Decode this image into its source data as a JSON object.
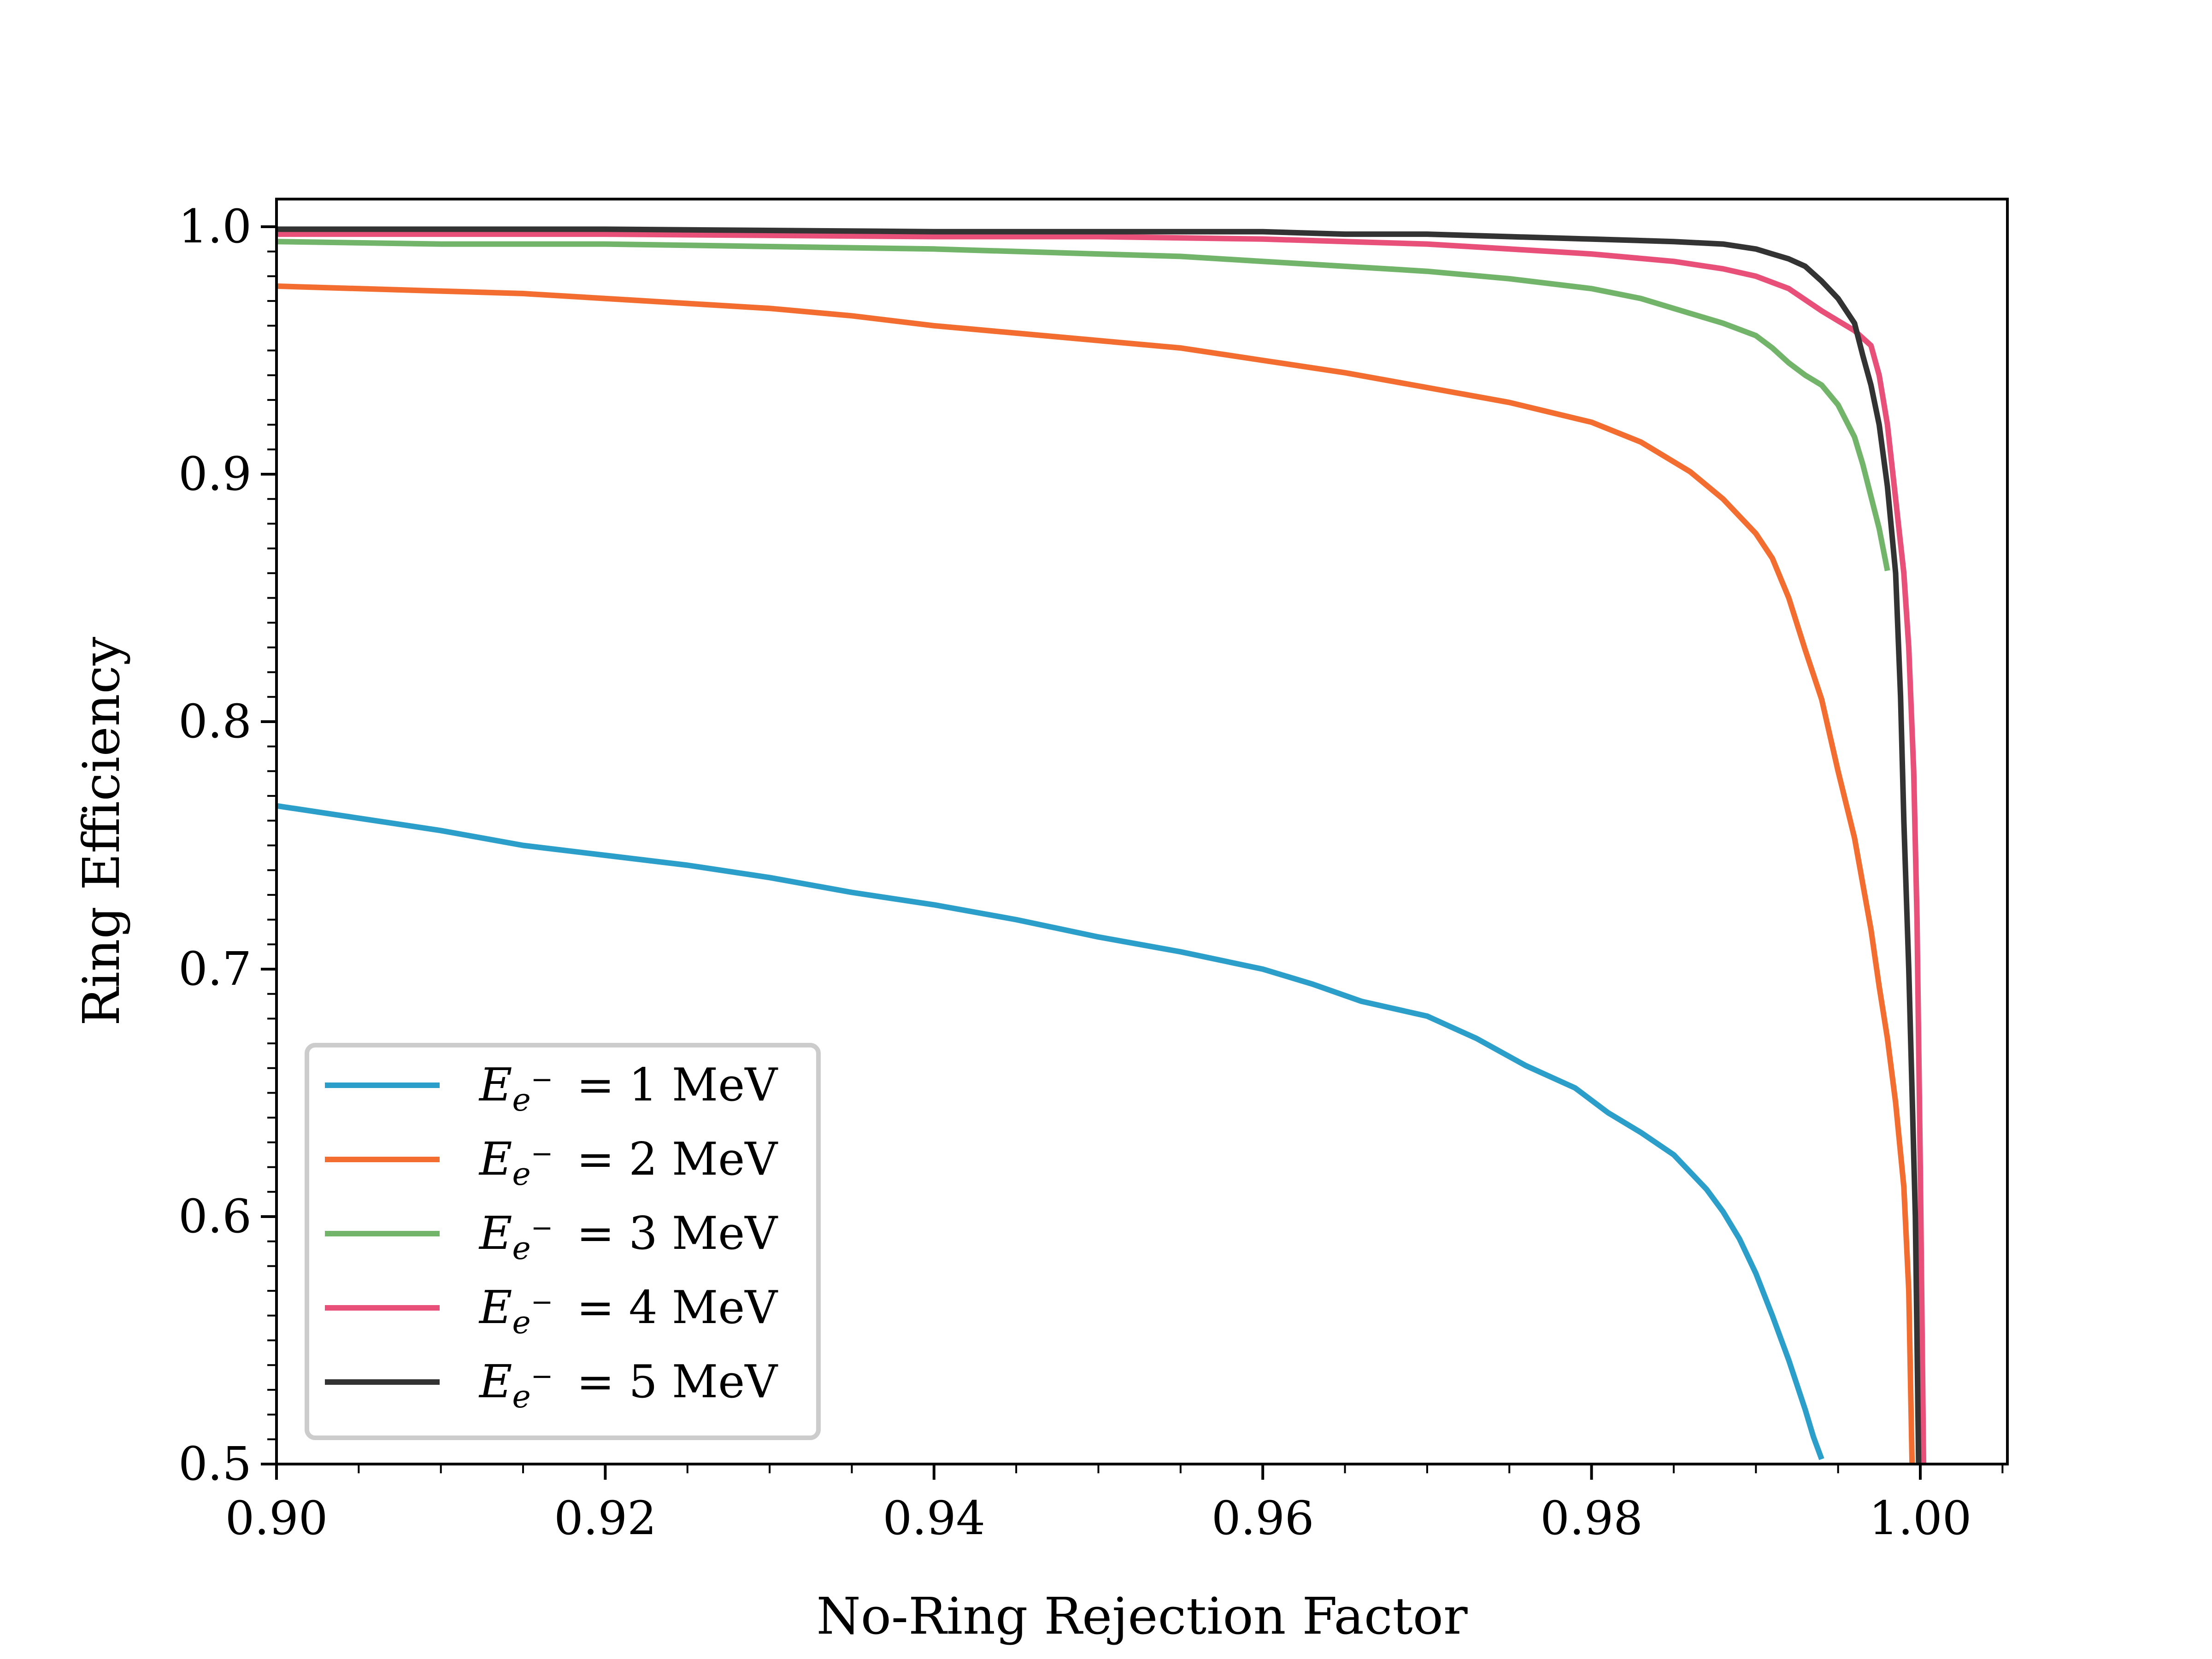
{
  "chart_data": {
    "type": "line",
    "title": "",
    "xlabel": "No-Ring Rejection Factor",
    "ylabel": "Ring Efficiency",
    "xlim": [
      0.9,
      1.005
    ],
    "ylim": [
      0.5,
      1.005
    ],
    "x_ticks": [
      0.9,
      0.92,
      0.94,
      0.96,
      0.98,
      1.0
    ],
    "x_tick_labels": [
      "0.90",
      "0.92",
      "0.94",
      "0.96",
      "0.98",
      "1.00"
    ],
    "y_ticks": [
      0.5,
      0.6,
      0.7,
      0.8,
      0.9,
      1.0
    ],
    "y_tick_labels": [
      "0.5",
      "0.6",
      "0.7",
      "0.8",
      "0.9",
      "1.0"
    ],
    "grid": false,
    "legend_position": "bottom-left",
    "series": [
      {
        "name": "E_{e-} = 1 MeV",
        "legend_label": {
          "symbol": "E",
          "subscript": "e",
          "superscript": "−",
          "value": " = 1 MeV"
        },
        "color": "#2b9fc9",
        "x": [
          0.9,
          0.905,
          0.91,
          0.915,
          0.92,
          0.925,
          0.93,
          0.935,
          0.94,
          0.945,
          0.95,
          0.955,
          0.96,
          0.963,
          0.966,
          0.97,
          0.973,
          0.976,
          0.979,
          0.981,
          0.983,
          0.985,
          0.987,
          0.988,
          0.989,
          0.99,
          0.991,
          0.992,
          0.993,
          0.9935,
          0.994
        ],
        "y": [
          0.766,
          0.761,
          0.756,
          0.75,
          0.746,
          0.742,
          0.737,
          0.731,
          0.726,
          0.72,
          0.713,
          0.707,
          0.7,
          0.694,
          0.687,
          0.681,
          0.672,
          0.661,
          0.652,
          0.642,
          0.634,
          0.625,
          0.611,
          0.602,
          0.591,
          0.577,
          0.56,
          0.542,
          0.522,
          0.511,
          0.502
        ]
      },
      {
        "name": "E_{e-} = 2 MeV",
        "legend_label": {
          "symbol": "E",
          "subscript": "e",
          "superscript": "−",
          "value": " = 2 MeV"
        },
        "color": "#f26d2f",
        "x": [
          0.9,
          0.905,
          0.91,
          0.915,
          0.92,
          0.925,
          0.93,
          0.935,
          0.94,
          0.945,
          0.95,
          0.955,
          0.96,
          0.965,
          0.97,
          0.975,
          0.98,
          0.983,
          0.986,
          0.988,
          0.99,
          0.991,
          0.992,
          0.993,
          0.994,
          0.995,
          0.996,
          0.997,
          0.9975,
          0.998,
          0.9985,
          0.999,
          0.9993,
          0.9995
        ],
        "y": [
          0.976,
          0.975,
          0.974,
          0.973,
          0.971,
          0.969,
          0.967,
          0.964,
          0.96,
          0.957,
          0.954,
          0.951,
          0.946,
          0.941,
          0.935,
          0.929,
          0.921,
          0.913,
          0.901,
          0.89,
          0.876,
          0.866,
          0.85,
          0.829,
          0.809,
          0.78,
          0.753,
          0.716,
          0.693,
          0.672,
          0.646,
          0.612,
          0.57,
          0.5
        ]
      },
      {
        "name": "E_{e-} = 3 MeV",
        "legend_label": {
          "symbol": "E",
          "subscript": "e",
          "superscript": "−",
          "value": " = 3 MeV"
        },
        "color": "#71b46a",
        "x": [
          0.9,
          0.91,
          0.92,
          0.93,
          0.94,
          0.95,
          0.955,
          0.96,
          0.965,
          0.97,
          0.975,
          0.98,
          0.983,
          0.986,
          0.988,
          0.99,
          0.991,
          0.992,
          0.993,
          0.994,
          0.995,
          0.996,
          0.9965,
          0.997,
          0.9975,
          0.998
        ],
        "y": [
          0.994,
          0.993,
          0.993,
          0.992,
          0.991,
          0.989,
          0.988,
          0.986,
          0.984,
          0.982,
          0.979,
          0.975,
          0.971,
          0.965,
          0.961,
          0.956,
          0.951,
          0.945,
          0.94,
          0.936,
          0.928,
          0.915,
          0.904,
          0.891,
          0.878,
          0.861
        ]
      },
      {
        "name": "E_{e-} = 4 MeV",
        "legend_label": {
          "symbol": "E",
          "subscript": "e",
          "superscript": "−",
          "value": " = 4 MeV"
        },
        "color": "#e8507a",
        "x": [
          0.9,
          0.92,
          0.94,
          0.95,
          0.96,
          0.97,
          0.975,
          0.98,
          0.985,
          0.988,
          0.99,
          0.992,
          0.994,
          0.995,
          0.996,
          0.997,
          0.9975,
          0.998,
          0.9985,
          0.999,
          0.9993,
          0.9996,
          0.9998,
          1.0,
          1.0002
        ],
        "y": [
          0.997,
          0.997,
          0.996,
          0.996,
          0.995,
          0.993,
          0.991,
          0.989,
          0.986,
          0.983,
          0.98,
          0.975,
          0.966,
          0.962,
          0.958,
          0.952,
          0.94,
          0.92,
          0.89,
          0.86,
          0.83,
          0.78,
          0.72,
          0.62,
          0.5
        ]
      },
      {
        "name": "E_{e-} = 5 MeV",
        "legend_label": {
          "symbol": "E",
          "subscript": "e",
          "superscript": "−",
          "value": " = 5 MeV"
        },
        "color": "#333333",
        "x": [
          0.9,
          0.92,
          0.94,
          0.95,
          0.96,
          0.965,
          0.97,
          0.975,
          0.98,
          0.985,
          0.988,
          0.99,
          0.991,
          0.992,
          0.993,
          0.994,
          0.995,
          0.996,
          0.9965,
          0.997,
          0.9975,
          0.998,
          0.9985,
          0.9988,
          0.999,
          0.9993,
          0.9995,
          0.9997,
          0.9998,
          0.9999
        ],
        "y": [
          0.999,
          0.999,
          0.998,
          0.998,
          0.998,
          0.997,
          0.997,
          0.996,
          0.995,
          0.994,
          0.993,
          0.991,
          0.989,
          0.987,
          0.984,
          0.978,
          0.971,
          0.961,
          0.948,
          0.936,
          0.92,
          0.895,
          0.86,
          0.81,
          0.76,
          0.7,
          0.65,
          0.6,
          0.55,
          0.5
        ]
      }
    ]
  }
}
